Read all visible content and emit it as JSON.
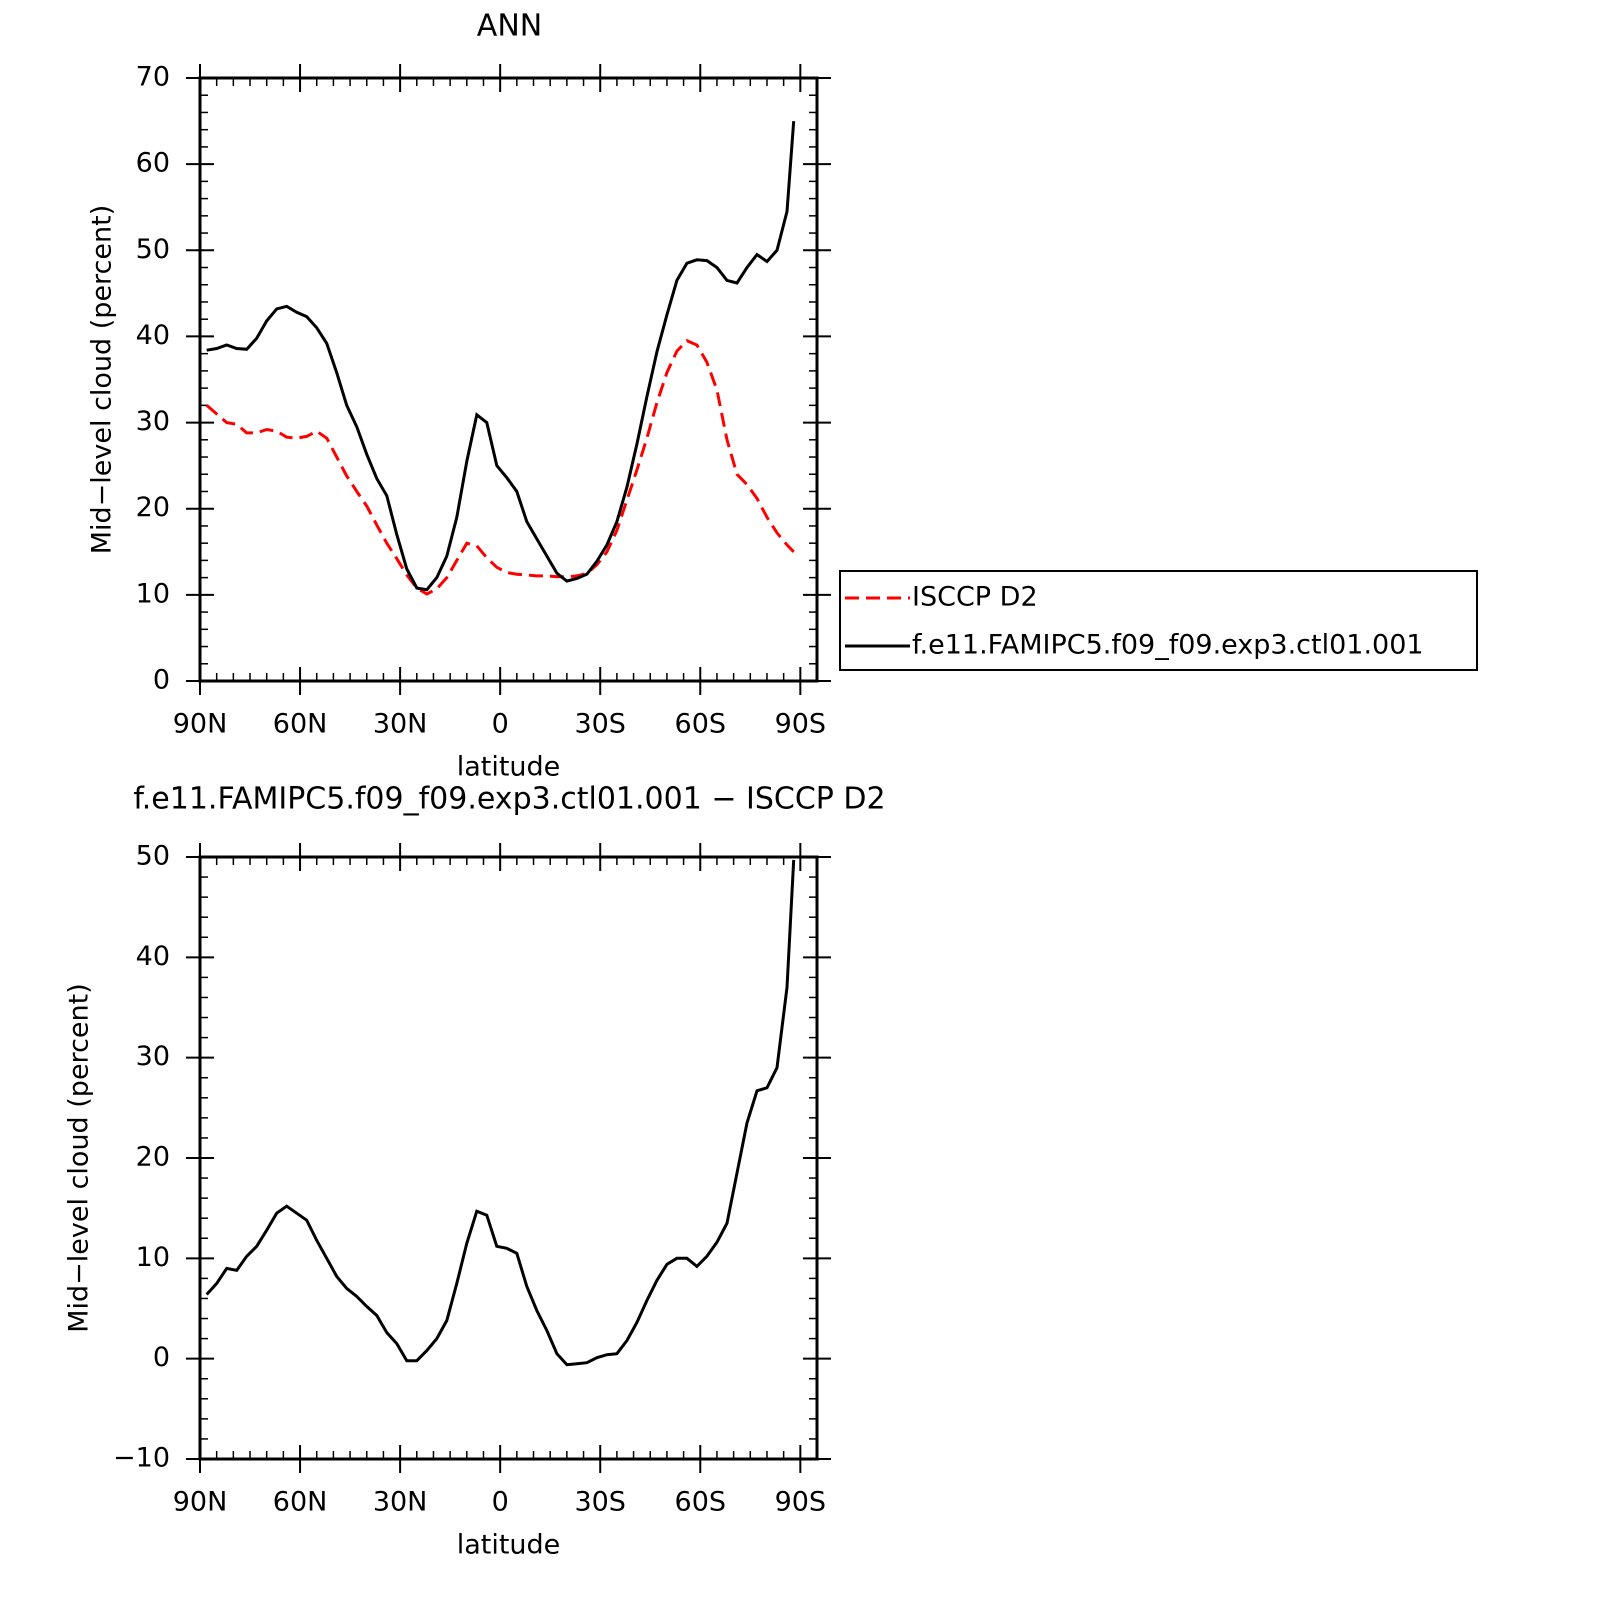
{
  "chart_data": [
    {
      "type": "line",
      "title": "ANN",
      "x_label": "latitude",
      "y_label": "Mid−level cloud (percent)",
      "x": [
        88,
        85,
        82,
        79,
        76,
        73,
        70,
        67,
        64,
        61,
        58,
        55,
        52,
        49,
        46,
        43,
        40,
        37,
        34,
        31,
        28,
        25,
        22,
        19,
        16,
        13,
        10,
        7,
        4,
        1,
        -2,
        -5,
        -8,
        -11,
        -14,
        -17,
        -20,
        -23,
        -26,
        -29,
        -32,
        -35,
        -38,
        -41,
        -44,
        -47,
        -50,
        -53,
        -56,
        -59,
        -62,
        -65,
        -68,
        -71,
        -74,
        -77,
        -80,
        -83,
        -86,
        -88
      ],
      "series": [
        {
          "name": "ISCCP D2",
          "color": "#ff0000",
          "style": "dashed",
          "values": [
            32.0,
            31.0,
            30.0,
            29.8,
            28.8,
            28.8,
            29.2,
            29.0,
            28.3,
            28.2,
            28.4,
            29.0,
            28.2,
            26.0,
            23.8,
            22.0,
            20.3,
            18.1,
            16.0,
            14.2,
            12.3,
            10.8,
            10.1,
            10.7,
            12.0,
            14.0,
            16.0,
            15.7,
            14.3,
            13.2,
            12.6,
            12.4,
            12.3,
            12.2,
            12.2,
            12.1,
            12.1,
            12.2,
            12.5,
            13.5,
            15.0,
            17.5,
            21.0,
            24.5,
            28.2,
            32.3,
            35.8,
            38.3,
            39.5,
            39.0,
            37.0,
            33.8,
            28.0,
            24.0,
            22.8,
            21.2,
            19.0,
            17.2,
            15.8,
            15.0
          ]
        },
        {
          "name": "f.e11.FAMIPC5.f09_f09.exp3.ctl01.001",
          "color": "#000000",
          "style": "solid",
          "values": [
            38.4,
            38.6,
            39.0,
            38.6,
            38.5,
            39.8,
            41.8,
            43.2,
            43.5,
            42.8,
            42.3,
            41.0,
            39.2,
            35.8,
            32.0,
            29.5,
            26.3,
            23.5,
            21.5,
            17.0,
            13.0,
            10.8,
            10.6,
            12.0,
            14.5,
            19.0,
            25.5,
            30.9,
            30.0,
            25.0,
            23.6,
            22.0,
            18.5,
            16.5,
            14.5,
            12.5,
            11.6,
            11.9,
            12.4,
            13.9,
            15.8,
            18.5,
            22.5,
            27.5,
            33.0,
            38.2,
            42.5,
            46.5,
            48.5,
            48.9,
            48.8,
            48.0,
            46.5,
            46.2,
            48.0,
            49.5,
            48.7,
            50.0,
            54.5,
            65.0
          ]
        }
      ],
      "xlim": [
        90,
        -95
      ],
      "ylim": [
        0,
        70
      ],
      "xticks": [
        {
          "value": 90,
          "label": "90N"
        },
        {
          "value": 60,
          "label": "60N"
        },
        {
          "value": 30,
          "label": "30N"
        },
        0,
        {
          "value": -30,
          "label": "30S"
        },
        {
          "value": -60,
          "label": "60S"
        },
        {
          "value": -90,
          "label": "90S"
        }
      ],
      "yticks": [
        0,
        10,
        20,
        30,
        40,
        50,
        60,
        70
      ],
      "legend": "right"
    },
    {
      "type": "line",
      "title": "f.e11.FAMIPC5.f09_f09.exp3.ctl01.001 − ISCCP D2",
      "x_label": "latitude",
      "y_label": "Mid−level cloud (percent)",
      "x": [
        88,
        85,
        82,
        79,
        76,
        73,
        70,
        67,
        64,
        61,
        58,
        55,
        52,
        49,
        46,
        43,
        40,
        37,
        34,
        31,
        28,
        25,
        22,
        19,
        16,
        13,
        10,
        7,
        4,
        1,
        -2,
        -5,
        -8,
        -11,
        -14,
        -17,
        -20,
        -23,
        -26,
        -29,
        -32,
        -35,
        -38,
        -41,
        -44,
        -47,
        -50,
        -53,
        -56,
        -59,
        -62,
        -65,
        -68,
        -71,
        -74,
        -77,
        -80,
        -83,
        -86,
        -88
      ],
      "series": [
        {
          "color": "#000000",
          "style": "solid",
          "values": [
            6.4,
            7.5,
            9.0,
            8.8,
            10.2,
            11.2,
            12.8,
            14.5,
            15.2,
            14.5,
            13.8,
            11.8,
            10.0,
            8.2,
            7.0,
            6.2,
            5.2,
            4.3,
            2.6,
            1.5,
            -0.2,
            -0.2,
            0.8,
            2.0,
            3.8,
            7.5,
            11.5,
            14.7,
            14.3,
            11.2,
            11.0,
            10.5,
            7.2,
            4.8,
            2.8,
            0.5,
            -0.6,
            -0.5,
            -0.4,
            0.1,
            0.4,
            0.5,
            1.8,
            3.6,
            5.8,
            7.8,
            9.4,
            10.0,
            10.0,
            9.2,
            10.2,
            11.6,
            13.5,
            18.5,
            23.5,
            26.7,
            27.0,
            29.0,
            37.0,
            49.7
          ]
        }
      ],
      "xlim": [
        90,
        -95
      ],
      "ylim": [
        -10,
        50
      ],
      "xticks": [
        {
          "value": 90,
          "label": "90N"
        },
        {
          "value": 60,
          "label": "60N"
        },
        {
          "value": 30,
          "label": "30N"
        },
        0,
        {
          "value": -30,
          "label": "30S"
        },
        {
          "value": -60,
          "label": "60S"
        },
        {
          "value": -90,
          "label": "90S"
        }
      ],
      "yticks": [
        {
          "value": -10,
          "label": "−10"
        },
        0,
        10,
        20,
        30,
        40,
        50
      ]
    }
  ]
}
